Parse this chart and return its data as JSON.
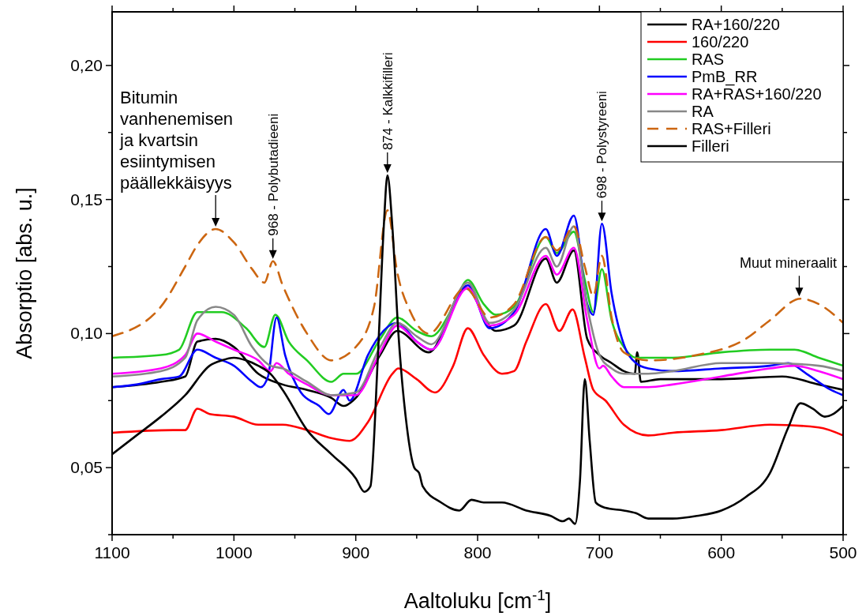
{
  "chart_data": {
    "type": "line",
    "xlabel": "Aaltoluku [cm$^{-1}$]",
    "ylabel": "Absorptio [abs. u.]",
    "xlim": [
      1100,
      500
    ],
    "ylim": [
      0.025,
      0.22
    ],
    "xticks": [
      1100,
      {
        "value": 1050,
        "label": null
      },
      1000,
      {
        "value": 950,
        "label": null
      },
      900,
      {
        "value": 850,
        "label": null
      },
      800,
      {
        "value": 750,
        "label": null
      },
      700,
      {
        "value": 650,
        "label": null
      },
      600,
      {
        "value": 550,
        "label": null
      },
      500
    ],
    "yticks": [
      {
        "value": 0.025,
        "label": null
      },
      {
        "value": 0.05,
        "label": "0,05"
      },
      {
        "value": 0.075,
        "label": null
      },
      {
        "value": 0.1,
        "label": "0,10"
      },
      {
        "value": 0.125,
        "label": null
      },
      {
        "value": 0.15,
        "label": "0,15"
      },
      {
        "value": 0.175,
        "label": null
      },
      {
        "value": 0.2,
        "label": "0,20"
      }
    ],
    "grid": false,
    "legend": "top right",
    "marker": "none",
    "line_style": "solid",
    "annotations": [
      {
        "text": "Bitumin\nvanhenemisen\nja kvartsin\nesiintymisen\npäällekkäisyys",
        "x": 1015,
        "y": 0.139
      },
      {
        "text": "968 - Polybutadieeni",
        "x": 968,
        "y": 0.127
      },
      {
        "text": "874 - Kalkkifilleri",
        "x": 874,
        "y": 0.159
      },
      {
        "text": "698 - Polystyreeni",
        "x": 698,
        "y": 0.141
      },
      {
        "text": "Muut mineraalit",
        "x": 536,
        "y": 0.113
      }
    ],
    "series": [
      {
        "name": "RA+160/220",
        "color": "#000000",
        "x": [
          1100,
          1060,
          1040,
          1030,
          1015,
          1000,
          980,
          960,
          940,
          920,
          910,
          900,
          880,
          866,
          840,
          810,
          785,
          770,
          744,
          735,
          721,
          710,
          700,
          690,
          680,
          671,
          669,
          666,
          650,
          600,
          550,
          520,
          500
        ],
        "values": [
          0.08,
          0.082,
          0.084,
          0.097,
          0.098,
          0.095,
          0.085,
          0.081,
          0.079,
          0.076,
          0.073,
          0.076,
          0.092,
          0.101,
          0.093,
          0.117,
          0.101,
          0.103,
          0.128,
          0.119,
          0.131,
          0.098,
          0.092,
          0.089,
          0.086,
          0.085,
          0.093,
          0.082,
          0.083,
          0.083,
          0.084,
          0.081,
          0.079
        ]
      },
      {
        "name": "160/220",
        "color": "#ff0000",
        "x": [
          1100,
          1050,
          1040,
          1030,
          1020,
          1000,
          980,
          960,
          940,
          920,
          905,
          890,
          870,
          865,
          850,
          835,
          820,
          808,
          795,
          780,
          770,
          760,
          744,
          733,
          722,
          712,
          705,
          695,
          680,
          660,
          640,
          600,
          560,
          520,
          500
        ],
        "values": [
          0.063,
          0.064,
          0.064,
          0.072,
          0.07,
          0.069,
          0.066,
          0.066,
          0.064,
          0.061,
          0.06,
          0.067,
          0.085,
          0.087,
          0.083,
          0.078,
          0.088,
          0.102,
          0.092,
          0.085,
          0.086,
          0.097,
          0.111,
          0.101,
          0.109,
          0.091,
          0.079,
          0.075,
          0.066,
          0.062,
          0.063,
          0.064,
          0.066,
          0.065,
          0.062
        ]
      },
      {
        "name": "RAS",
        "color": "#22cc22",
        "x": [
          1100,
          1060,
          1045,
          1030,
          1010,
          990,
          975,
          966,
          955,
          940,
          920,
          910,
          900,
          880,
          866,
          850,
          838,
          820,
          808,
          795,
          785,
          770,
          744,
          735,
          721,
          712,
          705,
          698,
          690,
          680,
          670,
          640,
          600,
          560,
          540,
          520,
          500
        ],
        "values": [
          0.091,
          0.092,
          0.094,
          0.108,
          0.108,
          0.102,
          0.095,
          0.107,
          0.097,
          0.09,
          0.082,
          0.085,
          0.085,
          0.098,
          0.106,
          0.101,
          0.099,
          0.11,
          0.12,
          0.111,
          0.107,
          0.11,
          0.136,
          0.13,
          0.138,
          0.12,
          0.108,
          0.124,
          0.105,
          0.095,
          0.091,
          0.091,
          0.093,
          0.094,
          0.094,
          0.091,
          0.088
        ]
      },
      {
        "name": "PmB_RR",
        "color": "#0000ff",
        "x": [
          1100,
          1080,
          1060,
          1045,
          1030,
          1015,
          1000,
          985,
          978,
          972,
          965,
          958,
          945,
          930,
          922,
          910,
          905,
          890,
          866,
          850,
          838,
          808,
          790,
          770,
          744,
          735,
          721,
          710,
          705,
          698,
          690,
          680,
          670,
          660,
          640,
          600,
          560,
          545,
          530,
          510,
          500
        ],
        "values": [
          0.08,
          0.081,
          0.083,
          0.084,
          0.094,
          0.091,
          0.088,
          0.082,
          0.08,
          0.084,
          0.106,
          0.092,
          0.078,
          0.073,
          0.07,
          0.079,
          0.075,
          0.092,
          0.104,
          0.097,
          0.094,
          0.118,
          0.102,
          0.108,
          0.139,
          0.129,
          0.144,
          0.111,
          0.107,
          0.141,
          0.115,
          0.096,
          0.089,
          0.087,
          0.086,
          0.087,
          0.088,
          0.089,
          0.085,
          0.079,
          0.077
        ]
      },
      {
        "name": "RA+RAS+160/220",
        "color": "#ff00ff",
        "x": [
          1100,
          1060,
          1040,
          1030,
          1015,
          1000,
          980,
          970,
          965,
          955,
          940,
          920,
          900,
          880,
          866,
          850,
          838,
          808,
          790,
          770,
          744,
          735,
          721,
          710,
          700,
          697,
          690,
          680,
          660,
          640,
          600,
          560,
          540,
          520,
          500
        ],
        "values": [
          0.085,
          0.087,
          0.092,
          0.1,
          0.097,
          0.094,
          0.09,
          0.086,
          0.089,
          0.085,
          0.081,
          0.077,
          0.077,
          0.093,
          0.103,
          0.097,
          0.094,
          0.117,
          0.103,
          0.107,
          0.129,
          0.122,
          0.132,
          0.105,
          0.087,
          0.088,
          0.084,
          0.08,
          0.08,
          0.081,
          0.084,
          0.087,
          0.088,
          0.086,
          0.083
        ]
      },
      {
        "name": "RA",
        "color": "#888888",
        "x": [
          1100,
          1060,
          1040,
          1030,
          1015,
          1000,
          985,
          970,
          960,
          940,
          920,
          900,
          880,
          866,
          850,
          838,
          808,
          790,
          770,
          744,
          735,
          721,
          710,
          700,
          690,
          680,
          660,
          640,
          600,
          560,
          520,
          500
        ],
        "values": [
          0.084,
          0.086,
          0.091,
          0.105,
          0.11,
          0.107,
          0.095,
          0.088,
          0.087,
          0.082,
          0.077,
          0.078,
          0.095,
          0.104,
          0.099,
          0.096,
          0.119,
          0.104,
          0.109,
          0.132,
          0.125,
          0.14,
          0.11,
          0.092,
          0.087,
          0.085,
          0.085,
          0.086,
          0.089,
          0.089,
          0.088,
          0.086
        ]
      },
      {
        "name": "RAS+Filleri",
        "color": "#cc6611",
        "line_style": "dashed",
        "x": [
          1100,
          1060,
          1040,
          1030,
          1015,
          1000,
          985,
          975,
          968,
          960,
          940,
          920,
          900,
          885,
          874,
          866,
          855,
          840,
          810,
          790,
          770,
          744,
          735,
          721,
          712,
          705,
          698,
          690,
          680,
          660,
          620,
          580,
          560,
          535,
          520,
          500
        ],
        "values": [
          0.099,
          0.11,
          0.125,
          0.133,
          0.139,
          0.134,
          0.124,
          0.119,
          0.127,
          0.118,
          0.1,
          0.09,
          0.095,
          0.11,
          0.146,
          0.123,
          0.108,
          0.1,
          0.117,
          0.106,
          0.111,
          0.136,
          0.131,
          0.14,
          0.125,
          0.114,
          0.129,
          0.106,
          0.093,
          0.09,
          0.092,
          0.098,
          0.105,
          0.113,
          0.111,
          0.104
        ]
      },
      {
        "name": "Filleri",
        "color": "#000000",
        "x": [
          1100,
          1080,
          1060,
          1040,
          1020,
          1010,
          1000,
          990,
          980,
          970,
          960,
          940,
          920,
          900,
          893,
          888,
          882,
          877,
          874,
          870,
          865,
          858,
          852,
          848,
          845,
          830,
          815,
          805,
          795,
          780,
          760,
          740,
          730,
          725,
          720,
          716,
          712,
          708,
          703,
          695,
          680,
          670,
          660,
          640,
          620,
          600,
          580,
          560,
          545,
          535,
          525,
          515,
          508,
          500
        ],
        "values": [
          0.055,
          0.062,
          0.069,
          0.077,
          0.088,
          0.09,
          0.091,
          0.09,
          0.088,
          0.085,
          0.079,
          0.064,
          0.055,
          0.046,
          0.041,
          0.043,
          0.09,
          0.14,
          0.159,
          0.14,
          0.1,
          0.065,
          0.05,
          0.048,
          0.043,
          0.037,
          0.034,
          0.038,
          0.037,
          0.037,
          0.034,
          0.032,
          0.03,
          0.031,
          0.029,
          0.045,
          0.083,
          0.06,
          0.037,
          0.035,
          0.034,
          0.033,
          0.031,
          0.031,
          0.032,
          0.034,
          0.039,
          0.048,
          0.065,
          0.074,
          0.072,
          0.069,
          0.07,
          0.073
        ]
      }
    ]
  }
}
